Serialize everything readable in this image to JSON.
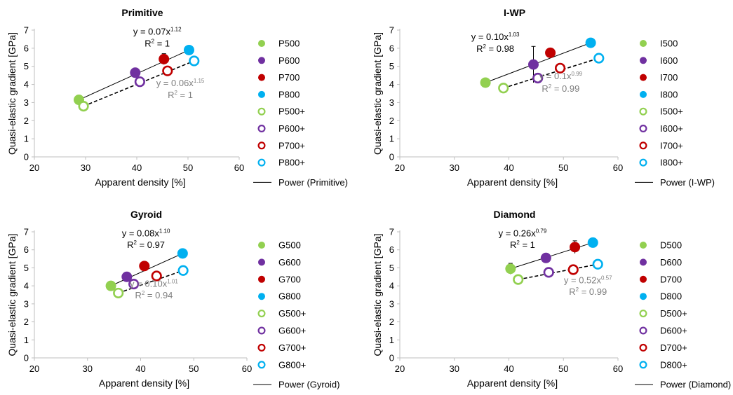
{
  "colors": {
    "green": "#92d050",
    "purple": "#7030a0",
    "red": "#c00000",
    "blue": "#00b0f0",
    "fit_solid": "#000000",
    "fit_dashed": "#000000",
    "annotation_solid": "#000000",
    "annotation_dashed": "#7f7f7f",
    "axis": "#bfbfbf"
  },
  "chart_data": [
    {
      "type": "scatter",
      "title": "Primitive",
      "xlabel": "Apparent density [%]",
      "ylabel": "Quasi-elastic gradient [GPa]",
      "xlim": [
        20,
        60
      ],
      "ylim": [
        0,
        7
      ],
      "x_ticks": [
        "20",
        "30",
        "40",
        "50",
        "60"
      ],
      "y_ticks": [
        "0",
        "1",
        "2",
        "3",
        "4",
        "5",
        "6",
        "7"
      ],
      "grid": false,
      "legend_position": "right",
      "series": [
        {
          "name": "P500",
          "marker": "filled",
          "color": "green",
          "x": 28.7,
          "y": 3.15,
          "err": 0
        },
        {
          "name": "P600",
          "marker": "filled",
          "color": "purple",
          "x": 39.7,
          "y": 4.65,
          "err": 0
        },
        {
          "name": "P700",
          "marker": "filled",
          "color": "red",
          "x": 45.3,
          "y": 5.4,
          "err": 0.3
        },
        {
          "name": "P800",
          "marker": "filled",
          "color": "blue",
          "x": 50.2,
          "y": 5.9,
          "err": 0
        },
        {
          "name": "P500+",
          "marker": "open",
          "color": "green",
          "x": 29.6,
          "y": 2.8,
          "err": 0
        },
        {
          "name": "P600+",
          "marker": "open",
          "color": "purple",
          "x": 40.6,
          "y": 4.15,
          "err": 0
        },
        {
          "name": "P700+",
          "marker": "open",
          "color": "red",
          "x": 46.0,
          "y": 4.75,
          "err": 0.15
        },
        {
          "name": "P800+",
          "marker": "open",
          "color": "blue",
          "x": 51.2,
          "y": 5.3,
          "err": 0
        }
      ],
      "fits": [
        {
          "style": "solid",
          "label": "Power (Primitive)",
          "x_from": 28.7,
          "x_to": 50.2,
          "y_from": 3.15,
          "y_to": 5.9
        },
        {
          "style": "dashed",
          "x_from": 29.6,
          "x_to": 51.2,
          "y_from": 2.8,
          "y_to": 5.3
        }
      ],
      "annotations": [
        {
          "kind": "solid",
          "eq_base": "y = 0.07x",
          "exp": "1.12",
          "r2_prefix": "R",
          "r2_sup": "2",
          "r2_value": " = 1",
          "pos": [
            44,
            6.75
          ],
          "r2pos": [
            44,
            6.1
          ]
        },
        {
          "kind": "dashed",
          "eq_base": "y = 0.06x",
          "exp": "1.15",
          "r2_prefix": "R",
          "r2_sup": "2",
          "r2_value": " = 1",
          "pos": [
            48.5,
            3.9
          ],
          "r2pos": [
            48.5,
            3.25
          ]
        }
      ]
    },
    {
      "type": "scatter",
      "title": "I-WP",
      "xlabel": "Apparent density [%]",
      "ylabel": "Quasi-elastic gradient [GPa]",
      "xlim": [
        20,
        60
      ],
      "ylim": [
        0,
        7
      ],
      "x_ticks": [
        "20",
        "30",
        "40",
        "50",
        "60"
      ],
      "y_ticks": [
        "0",
        "1",
        "2",
        "3",
        "4",
        "5",
        "6",
        "7"
      ],
      "grid": false,
      "legend_position": "right",
      "series": [
        {
          "name": "I500",
          "marker": "filled",
          "color": "green",
          "x": 35.7,
          "y": 4.1,
          "err": 0
        },
        {
          "name": "I600",
          "marker": "filled",
          "color": "purple",
          "x": 44.5,
          "y": 5.1,
          "err": 1.0
        },
        {
          "name": "I700",
          "marker": "filled",
          "color": "red",
          "x": 47.6,
          "y": 5.75,
          "err": 0
        },
        {
          "name": "I800",
          "marker": "filled",
          "color": "blue",
          "x": 55.0,
          "y": 6.3,
          "err": 0
        },
        {
          "name": "I500+",
          "marker": "open",
          "color": "green",
          "x": 39.0,
          "y": 3.8,
          "err": 0
        },
        {
          "name": "I600+",
          "marker": "open",
          "color": "purple",
          "x": 45.3,
          "y": 4.35,
          "err": 0
        },
        {
          "name": "I700+",
          "marker": "open",
          "color": "red",
          "x": 49.4,
          "y": 4.9,
          "err": 0
        },
        {
          "name": "I800+",
          "marker": "open",
          "color": "blue",
          "x": 56.5,
          "y": 5.45,
          "err": 0
        }
      ],
      "fits": [
        {
          "style": "solid",
          "label": "Power (I-WP)",
          "x_from": 35.7,
          "x_to": 55.0,
          "y_from": 4.1,
          "y_to": 6.3
        },
        {
          "style": "dashed",
          "x_from": 39.0,
          "x_to": 56.5,
          "y_from": 3.8,
          "y_to": 5.45
        }
      ],
      "annotations": [
        {
          "kind": "solid",
          "eq_base": "y = 0.10x",
          "exp": "1.03",
          "r2_prefix": "R",
          "r2_sup": "2",
          "r2_value": " = 0.98",
          "pos": [
            37.5,
            6.45
          ],
          "r2pos": [
            37.5,
            5.8
          ]
        },
        {
          "kind": "dashed",
          "eq_base": "y = 0.1x",
          "exp": "0.99",
          "r2_prefix": "R",
          "r2_sup": "2",
          "r2_value": " = 0.99",
          "pos": [
            49.5,
            4.3
          ],
          "r2pos": [
            49.5,
            3.6
          ]
        }
      ]
    },
    {
      "type": "scatter",
      "title": "Gyroid",
      "xlabel": "Apparent density [%]",
      "ylabel": "Quasi-elastic gradient [GPa]",
      "xlim": [
        20,
        60
      ],
      "ylim": [
        0,
        7
      ],
      "x_ticks": [
        "20",
        "30",
        "40",
        "50",
        "60"
      ],
      "y_ticks": [
        "0",
        "1",
        "2",
        "3",
        "4",
        "5",
        "6",
        "7"
      ],
      "grid": false,
      "legend_position": "right",
      "series": [
        {
          "name": "G500",
          "marker": "filled",
          "color": "green",
          "x": 34.4,
          "y": 4.0,
          "err": 0
        },
        {
          "name": "G600",
          "marker": "filled",
          "color": "purple",
          "x": 37.4,
          "y": 4.5,
          "err": 0.2
        },
        {
          "name": "G700",
          "marker": "filled",
          "color": "red",
          "x": 40.7,
          "y": 5.1,
          "err": 0
        },
        {
          "name": "G800",
          "marker": "filled",
          "color": "blue",
          "x": 47.9,
          "y": 5.8,
          "err": 0
        },
        {
          "name": "G500+",
          "marker": "open",
          "color": "green",
          "x": 35.8,
          "y": 3.6,
          "err": 0
        },
        {
          "name": "G600+",
          "marker": "open",
          "color": "purple",
          "x": 38.7,
          "y": 4.1,
          "err": 0
        },
        {
          "name": "G700+",
          "marker": "open",
          "color": "red",
          "x": 43.0,
          "y": 4.55,
          "err": 0
        },
        {
          "name": "G800+",
          "marker": "open",
          "color": "blue",
          "x": 48.0,
          "y": 4.85,
          "err": 0.15
        }
      ],
      "fits": [
        {
          "style": "solid",
          "label": "Power (Gyroid)",
          "x_from": 34.4,
          "x_to": 47.9,
          "y_from": 4.0,
          "y_to": 5.8
        },
        {
          "style": "dashed",
          "x_from": 35.8,
          "x_to": 48.0,
          "y_from": 3.6,
          "y_to": 4.85
        }
      ],
      "annotations": [
        {
          "kind": "solid",
          "eq_base": "y = 0.08x",
          "exp": "1.10",
          "r2_prefix": "R",
          "r2_sup": "2",
          "r2_value": " = 0.97",
          "pos": [
            41,
            6.75
          ],
          "r2pos": [
            41,
            6.1
          ]
        },
        {
          "kind": "dashed",
          "eq_base": "y = 0.10x",
          "exp": "1.01",
          "r2_prefix": "R",
          "r2_sup": "2",
          "r2_value": " = 0.94",
          "pos": [
            42.5,
            3.95
          ],
          "r2pos": [
            42.5,
            3.3
          ]
        }
      ]
    },
    {
      "type": "scatter",
      "title": "Diamond",
      "xlabel": "Apparent density [%]",
      "ylabel": "Quasi-elastic gradient [GPa]",
      "xlim": [
        20,
        60
      ],
      "ylim": [
        0,
        7
      ],
      "x_ticks": [
        "20",
        "30",
        "40",
        "50",
        "60"
      ],
      "y_ticks": [
        "0",
        "1",
        "2",
        "3",
        "4",
        "5",
        "6",
        "7"
      ],
      "grid": false,
      "legend_position": "right",
      "series": [
        {
          "name": "D500",
          "marker": "filled",
          "color": "green",
          "x": 40.3,
          "y": 4.95,
          "err": 0.3
        },
        {
          "name": "D600",
          "marker": "filled",
          "color": "purple",
          "x": 46.8,
          "y": 5.55,
          "err": 0
        },
        {
          "name": "D700",
          "marker": "filled",
          "color": "red",
          "x": 52.1,
          "y": 6.15,
          "err": 0.35
        },
        {
          "name": "D800",
          "marker": "filled",
          "color": "blue",
          "x": 55.4,
          "y": 6.4,
          "err": 0
        },
        {
          "name": "D500+",
          "marker": "open",
          "color": "green",
          "x": 41.7,
          "y": 4.35,
          "err": 0
        },
        {
          "name": "D600+",
          "marker": "open",
          "color": "purple",
          "x": 47.3,
          "y": 4.75,
          "err": 0
        },
        {
          "name": "D700+",
          "marker": "open",
          "color": "red",
          "x": 51.8,
          "y": 4.9,
          "err": 0.2
        },
        {
          "name": "D800+",
          "marker": "open",
          "color": "blue",
          "x": 56.3,
          "y": 5.2,
          "err": 0.15
        }
      ],
      "fits": [
        {
          "style": "solid",
          "label": "Power (Diamond)",
          "x_from": 40.3,
          "x_to": 55.4,
          "y_from": 4.95,
          "y_to": 6.4
        },
        {
          "style": "dashed",
          "x_from": 41.7,
          "x_to": 56.3,
          "y_from": 4.35,
          "y_to": 5.2
        }
      ],
      "annotations": [
        {
          "kind": "solid",
          "eq_base": "y = 0.26x",
          "exp": "0.79",
          "r2_prefix": "R",
          "r2_sup": "2",
          "r2_value": " = 1",
          "pos": [
            42.5,
            6.75
          ],
          "r2pos": [
            42.5,
            6.1
          ]
        },
        {
          "kind": "dashed",
          "eq_base": "y = 0.52x",
          "exp": "0.57",
          "r2_prefix": "R",
          "r2_sup": "2",
          "r2_value": " = 0.99",
          "pos": [
            54.5,
            4.15
          ],
          "r2pos": [
            54.5,
            3.5
          ]
        }
      ]
    }
  ]
}
